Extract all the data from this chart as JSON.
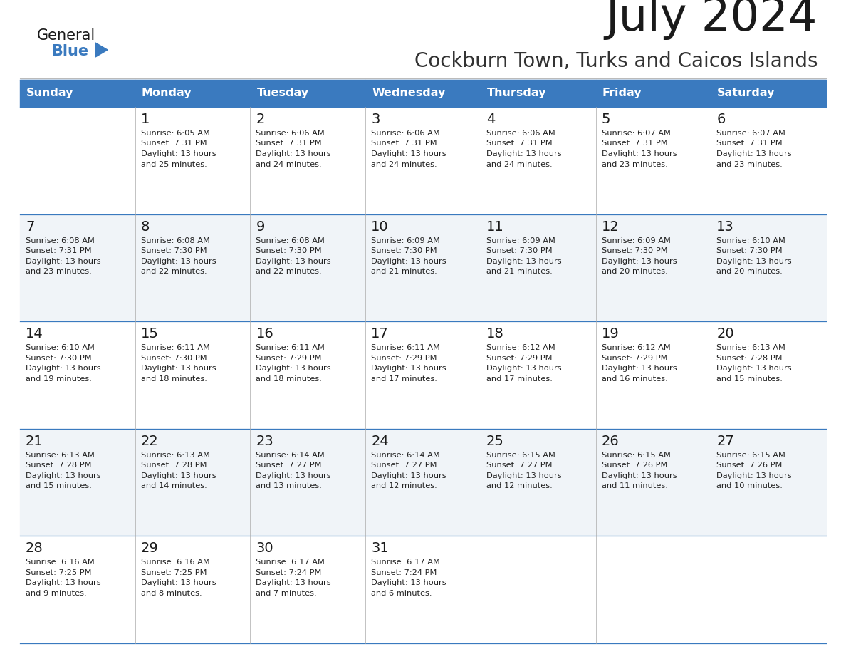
{
  "title": "July 2024",
  "subtitle": "Cockburn Town, Turks and Caicos Islands",
  "header_color": "#3a7abf",
  "header_text_color": "#ffffff",
  "days_of_week": [
    "Sunday",
    "Monday",
    "Tuesday",
    "Wednesday",
    "Thursday",
    "Friday",
    "Saturday"
  ],
  "bg_color": "#ffffff",
  "cell_bg_even": "#f0f4f8",
  "cell_bg_odd": "#ffffff",
  "title_color": "#1a1a1a",
  "subtitle_color": "#333333",
  "day_num_color": "#1a1a1a",
  "cell_text_color": "#222222",
  "grid_line_color": "#3a7abf",
  "logo_triangle_color": "#3a7abf",
  "calendar_data": [
    [
      null,
      {
        "day": 1,
        "sunrise": "6:05 AM",
        "sunset": "7:31 PM",
        "daylight_hours": 13,
        "daylight_minutes": 25
      },
      {
        "day": 2,
        "sunrise": "6:06 AM",
        "sunset": "7:31 PM",
        "daylight_hours": 13,
        "daylight_minutes": 24
      },
      {
        "day": 3,
        "sunrise": "6:06 AM",
        "sunset": "7:31 PM",
        "daylight_hours": 13,
        "daylight_minutes": 24
      },
      {
        "day": 4,
        "sunrise": "6:06 AM",
        "sunset": "7:31 PM",
        "daylight_hours": 13,
        "daylight_minutes": 24
      },
      {
        "day": 5,
        "sunrise": "6:07 AM",
        "sunset": "7:31 PM",
        "daylight_hours": 13,
        "daylight_minutes": 23
      },
      {
        "day": 6,
        "sunrise": "6:07 AM",
        "sunset": "7:31 PM",
        "daylight_hours": 13,
        "daylight_minutes": 23
      }
    ],
    [
      {
        "day": 7,
        "sunrise": "6:08 AM",
        "sunset": "7:31 PM",
        "daylight_hours": 13,
        "daylight_minutes": 23
      },
      {
        "day": 8,
        "sunrise": "6:08 AM",
        "sunset": "7:30 PM",
        "daylight_hours": 13,
        "daylight_minutes": 22
      },
      {
        "day": 9,
        "sunrise": "6:08 AM",
        "sunset": "7:30 PM",
        "daylight_hours": 13,
        "daylight_minutes": 22
      },
      {
        "day": 10,
        "sunrise": "6:09 AM",
        "sunset": "7:30 PM",
        "daylight_hours": 13,
        "daylight_minutes": 21
      },
      {
        "day": 11,
        "sunrise": "6:09 AM",
        "sunset": "7:30 PM",
        "daylight_hours": 13,
        "daylight_minutes": 21
      },
      {
        "day": 12,
        "sunrise": "6:09 AM",
        "sunset": "7:30 PM",
        "daylight_hours": 13,
        "daylight_minutes": 20
      },
      {
        "day": 13,
        "sunrise": "6:10 AM",
        "sunset": "7:30 PM",
        "daylight_hours": 13,
        "daylight_minutes": 20
      }
    ],
    [
      {
        "day": 14,
        "sunrise": "6:10 AM",
        "sunset": "7:30 PM",
        "daylight_hours": 13,
        "daylight_minutes": 19
      },
      {
        "day": 15,
        "sunrise": "6:11 AM",
        "sunset": "7:30 PM",
        "daylight_hours": 13,
        "daylight_minutes": 18
      },
      {
        "day": 16,
        "sunrise": "6:11 AM",
        "sunset": "7:29 PM",
        "daylight_hours": 13,
        "daylight_minutes": 18
      },
      {
        "day": 17,
        "sunrise": "6:11 AM",
        "sunset": "7:29 PM",
        "daylight_hours": 13,
        "daylight_minutes": 17
      },
      {
        "day": 18,
        "sunrise": "6:12 AM",
        "sunset": "7:29 PM",
        "daylight_hours": 13,
        "daylight_minutes": 17
      },
      {
        "day": 19,
        "sunrise": "6:12 AM",
        "sunset": "7:29 PM",
        "daylight_hours": 13,
        "daylight_minutes": 16
      },
      {
        "day": 20,
        "sunrise": "6:13 AM",
        "sunset": "7:28 PM",
        "daylight_hours": 13,
        "daylight_minutes": 15
      }
    ],
    [
      {
        "day": 21,
        "sunrise": "6:13 AM",
        "sunset": "7:28 PM",
        "daylight_hours": 13,
        "daylight_minutes": 15
      },
      {
        "day": 22,
        "sunrise": "6:13 AM",
        "sunset": "7:28 PM",
        "daylight_hours": 13,
        "daylight_minutes": 14
      },
      {
        "day": 23,
        "sunrise": "6:14 AM",
        "sunset": "7:27 PM",
        "daylight_hours": 13,
        "daylight_minutes": 13
      },
      {
        "day": 24,
        "sunrise": "6:14 AM",
        "sunset": "7:27 PM",
        "daylight_hours": 13,
        "daylight_minutes": 12
      },
      {
        "day": 25,
        "sunrise": "6:15 AM",
        "sunset": "7:27 PM",
        "daylight_hours": 13,
        "daylight_minutes": 12
      },
      {
        "day": 26,
        "sunrise": "6:15 AM",
        "sunset": "7:26 PM",
        "daylight_hours": 13,
        "daylight_minutes": 11
      },
      {
        "day": 27,
        "sunrise": "6:15 AM",
        "sunset": "7:26 PM",
        "daylight_hours": 13,
        "daylight_minutes": 10
      }
    ],
    [
      {
        "day": 28,
        "sunrise": "6:16 AM",
        "sunset": "7:25 PM",
        "daylight_hours": 13,
        "daylight_minutes": 9
      },
      {
        "day": 29,
        "sunrise": "6:16 AM",
        "sunset": "7:25 PM",
        "daylight_hours": 13,
        "daylight_minutes": 8
      },
      {
        "day": 30,
        "sunrise": "6:17 AM",
        "sunset": "7:24 PM",
        "daylight_hours": 13,
        "daylight_minutes": 7
      },
      {
        "day": 31,
        "sunrise": "6:17 AM",
        "sunset": "7:24 PM",
        "daylight_hours": 13,
        "daylight_minutes": 6
      },
      null,
      null,
      null
    ]
  ]
}
